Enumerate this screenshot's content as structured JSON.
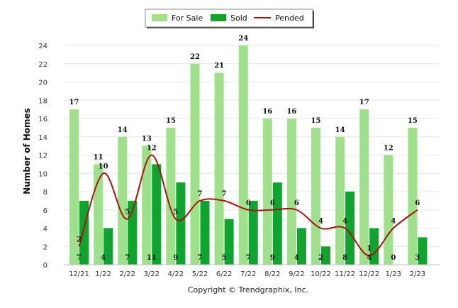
{
  "chart_data": {
    "type": "bar",
    "title": "",
    "xlabel": "",
    "ylabel": "Number of Homes",
    "ylim": [
      0,
      24
    ],
    "yticks": [
      0,
      2,
      4,
      6,
      8,
      10,
      12,
      14,
      16,
      18,
      20,
      22,
      24
    ],
    "grid": true,
    "legend_position": "top-center",
    "categories": [
      "12/21",
      "1/22",
      "2/22",
      "3/22",
      "4/22",
      "5/22",
      "6/22",
      "7/22",
      "8/22",
      "9/22",
      "10/22",
      "11/22",
      "12/22",
      "1/23",
      "2/23"
    ],
    "series": [
      {
        "name": "For Sale",
        "kind": "bar",
        "color": "#9fe08a",
        "values": [
          17,
          11,
          14,
          13,
          15,
          22,
          21,
          24,
          16,
          16,
          15,
          14,
          17,
          12,
          15
        ]
      },
      {
        "name": "Sold",
        "kind": "bar",
        "color": "#0ea52e",
        "values": [
          7,
          4,
          7,
          11,
          9,
          7,
          5,
          7,
          9,
          4,
          2,
          8,
          4,
          0,
          3
        ]
      },
      {
        "name": "Pended",
        "kind": "line",
        "color": "#b01010",
        "values": [
          2,
          10,
          5,
          12,
          5,
          7,
          7,
          6,
          6,
          6,
          4,
          4,
          1,
          4,
          6
        ]
      }
    ]
  },
  "footer": {
    "credit": "Copyright © Trendgraphix, Inc."
  }
}
